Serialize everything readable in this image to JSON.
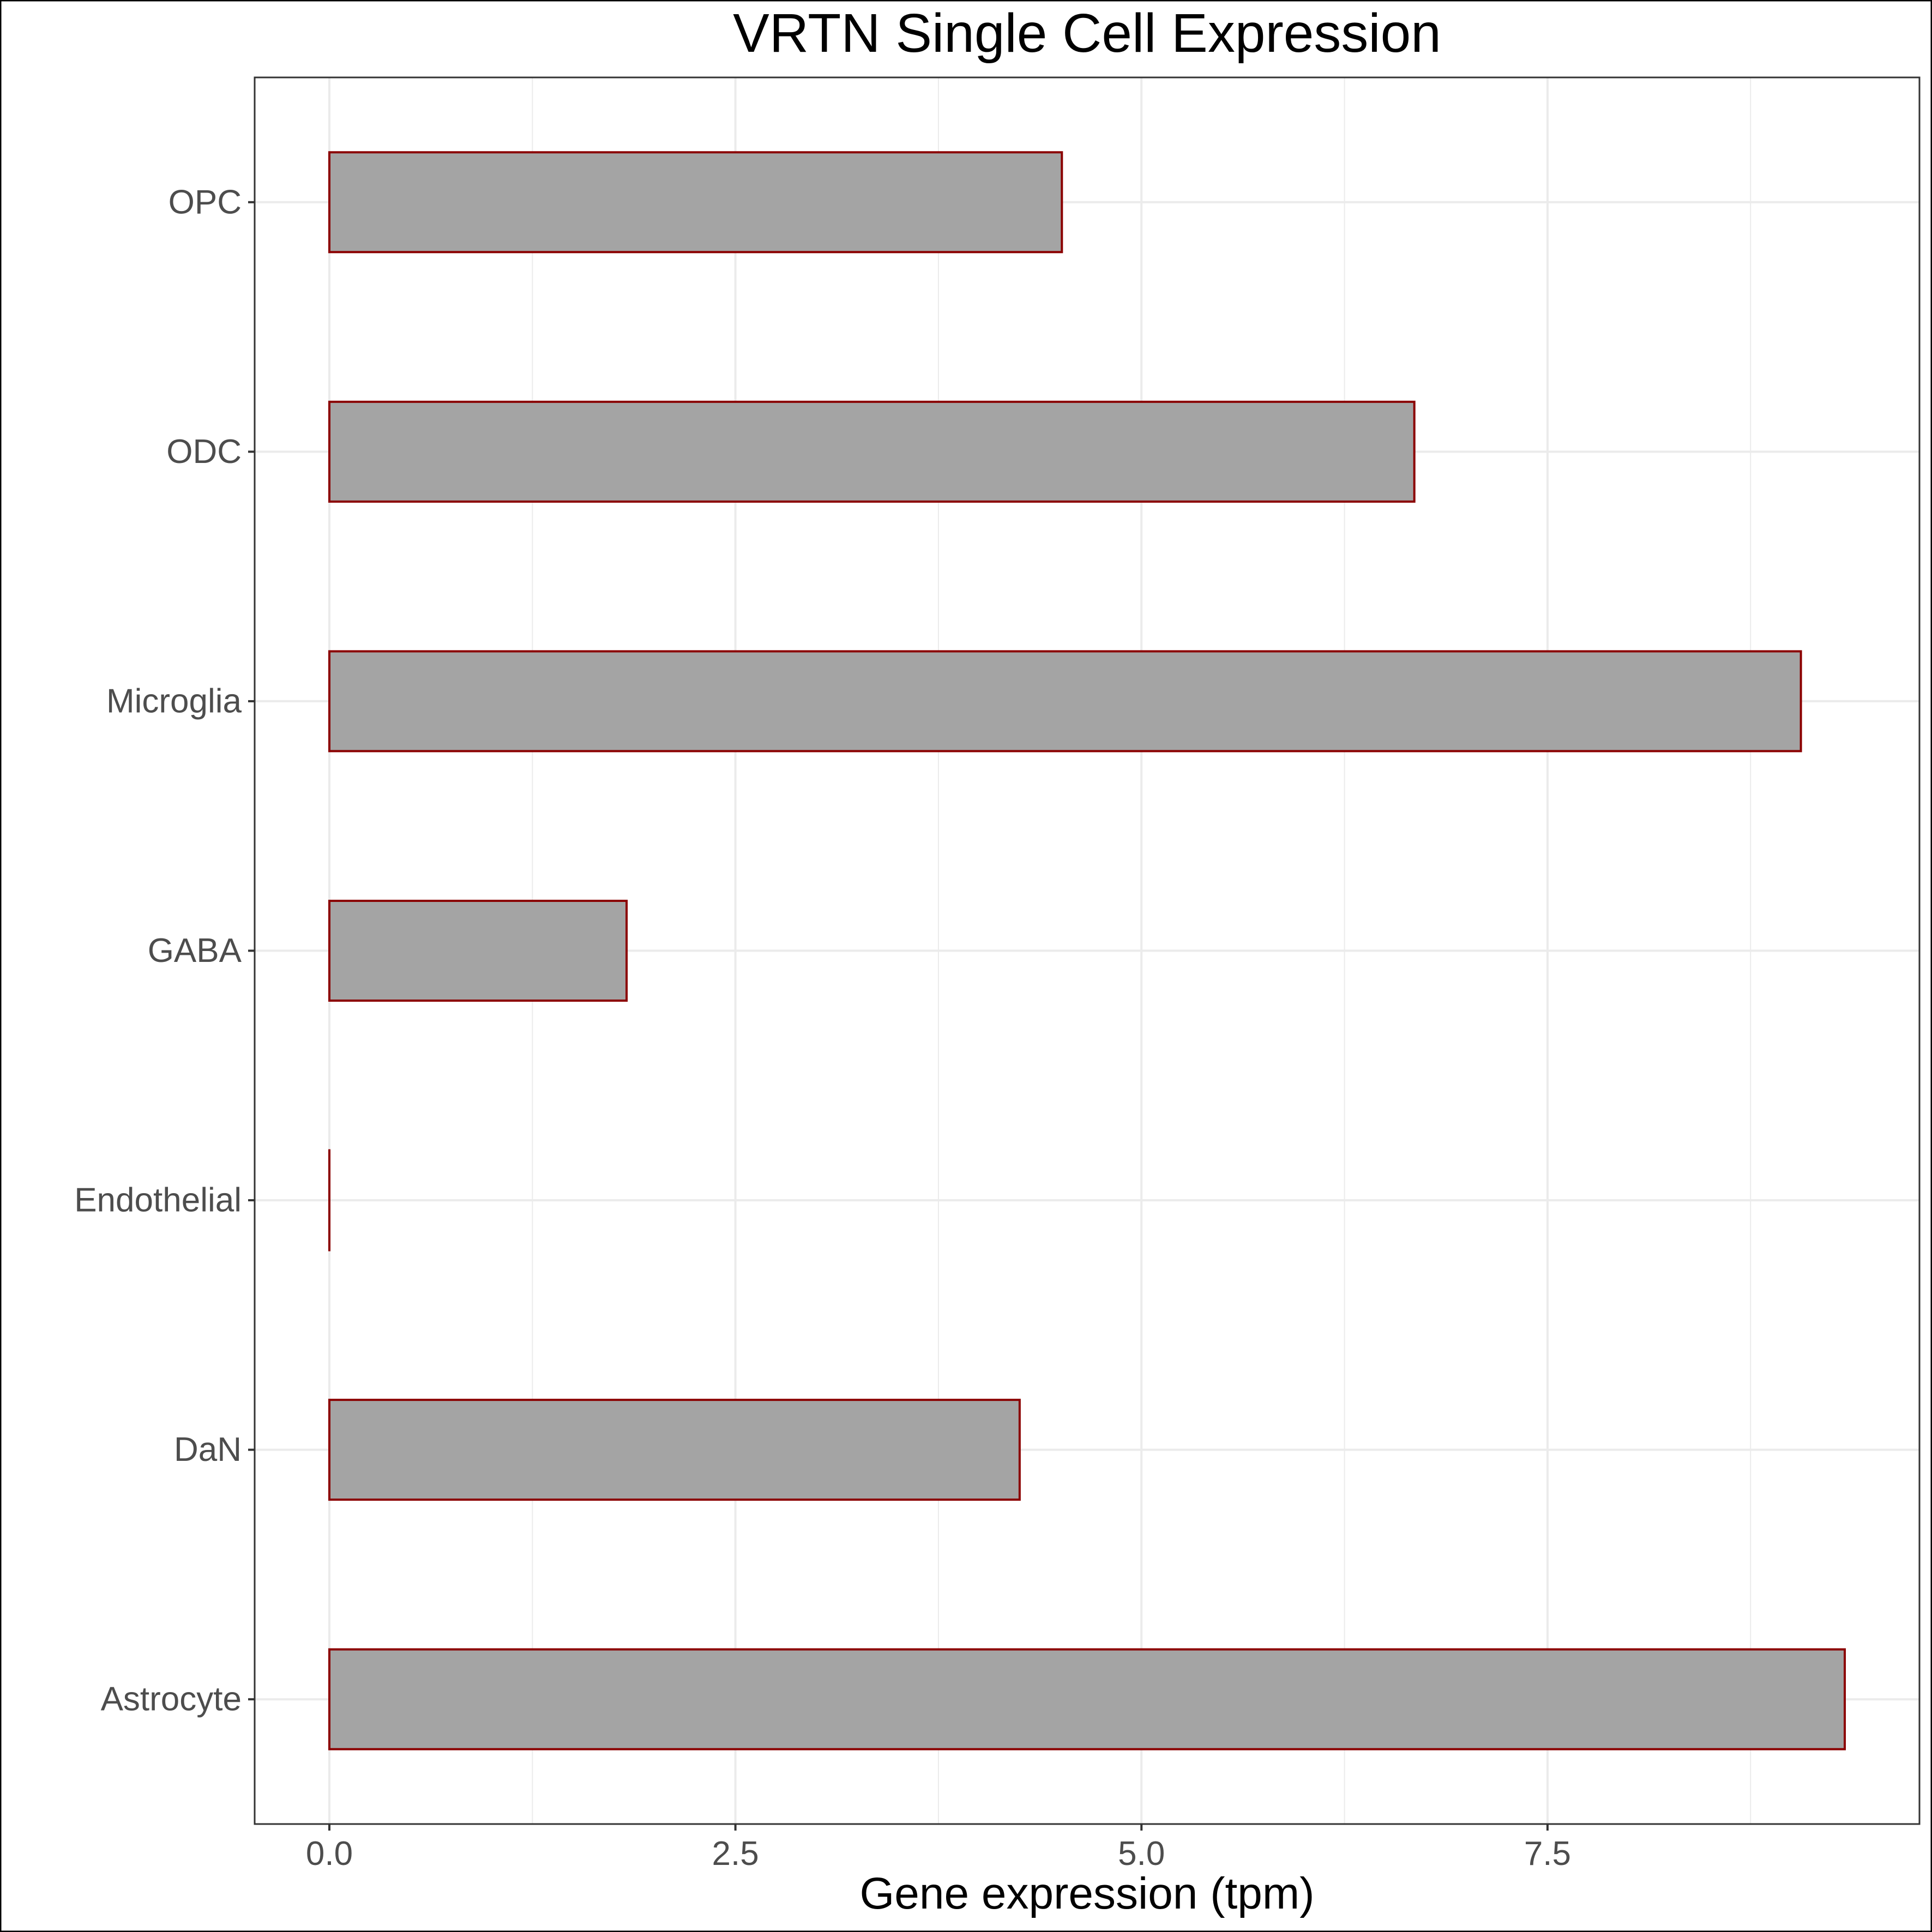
{
  "chart_data": {
    "type": "bar",
    "orientation": "horizontal",
    "title": "VRTN Single Cell Expression",
    "xlabel": "Gene expression (tpm)",
    "ylabel": "",
    "categories": [
      "Astrocyte",
      "DaN",
      "Endothelial",
      "GABA",
      "Microglia",
      "ODC",
      "OPC"
    ],
    "values": [
      9.33,
      4.25,
      0.0,
      1.83,
      9.06,
      6.68,
      4.51
    ],
    "xlim": [
      -0.46,
      9.79
    ],
    "xticks": [
      0.0,
      2.5,
      5.0,
      7.5
    ],
    "xtick_labels": [
      "0.0",
      "2.5",
      "5.0",
      "7.5"
    ],
    "grid": true,
    "legend": "none",
    "colors": {
      "bar_fill": "#a4a4a4",
      "bar_stroke": "#8b0000",
      "grid": "#ebebeb",
      "panel_border": "#333333",
      "tick_text": "#4d4d4d",
      "text": "#000000"
    }
  }
}
